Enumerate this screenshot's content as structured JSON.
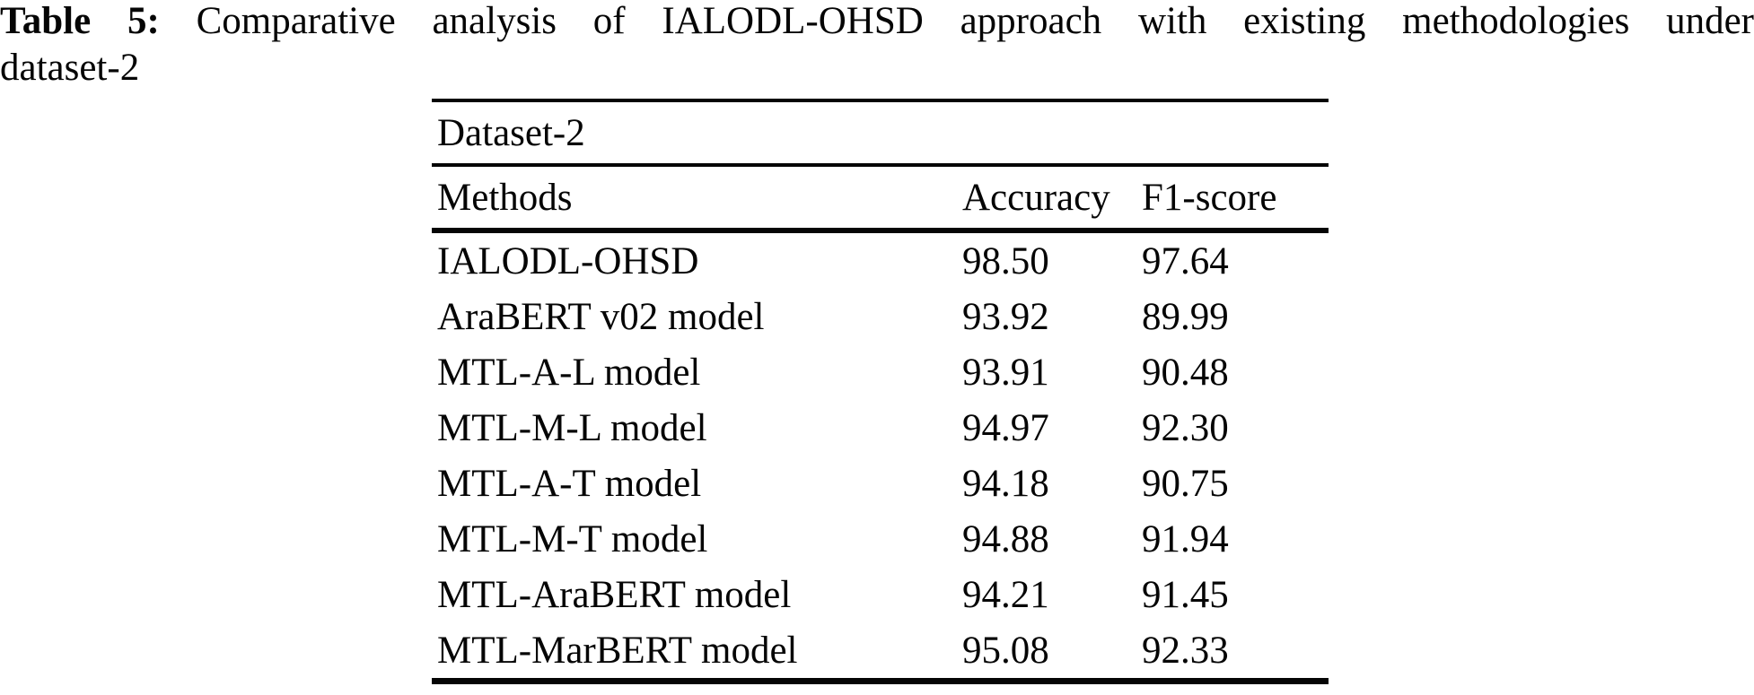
{
  "caption": {
    "label": "Table 5:",
    "rest": " Comparative analysis of IALODL-OHSD approach with existing methodologies under",
    "line2": "dataset-2"
  },
  "table": {
    "group_header": "Dataset-2",
    "columns": [
      "Methods",
      "Accuracy",
      "F1-score"
    ],
    "rows": [
      {
        "method": "IALODL-OHSD",
        "accuracy": "98.50",
        "f1": "97.64"
      },
      {
        "method": "AraBERT v02 model",
        "accuracy": "93.92",
        "f1": "89.99"
      },
      {
        "method": "MTL-A-L model",
        "accuracy": "93.91",
        "f1": "90.48"
      },
      {
        "method": "MTL-M-L model",
        "accuracy": "94.97",
        "f1": "92.30"
      },
      {
        "method": "MTL-A-T model",
        "accuracy": "94.18",
        "f1": "90.75"
      },
      {
        "method": "MTL-M-T model",
        "accuracy": "94.88",
        "f1": "91.94"
      },
      {
        "method": "MTL-AraBERT model",
        "accuracy": "94.21",
        "f1": "91.45"
      },
      {
        "method": "MTL-MarBERT model",
        "accuracy": "95.08",
        "f1": "92.33"
      }
    ]
  },
  "colors": {
    "text": "#050505",
    "background": "#ffffff"
  }
}
